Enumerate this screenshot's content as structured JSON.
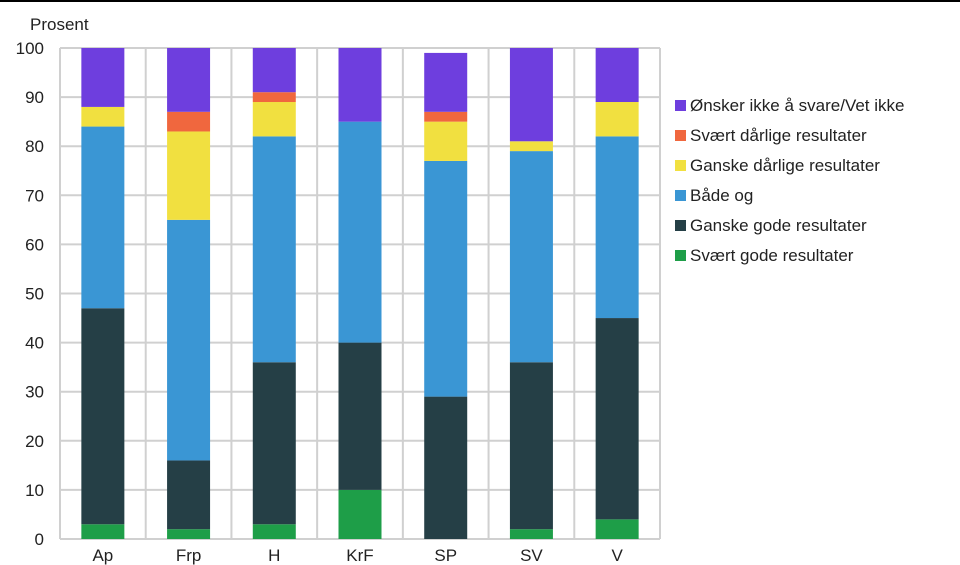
{
  "chart_data": {
    "type": "bar",
    "stacked": true,
    "title": "",
    "ylabel": "Prosent",
    "xlabel": "",
    "ylim": [
      0,
      100
    ],
    "yticks": [
      0,
      10,
      20,
      30,
      40,
      50,
      60,
      70,
      80,
      90,
      100
    ],
    "grid": true,
    "legend_position": "right",
    "categories": [
      "Ap",
      "Frp",
      "H",
      "KrF",
      "SP",
      "SV",
      "V"
    ],
    "series": [
      {
        "name": "Svært gode resultater",
        "color": "#1e9e48",
        "values": [
          3,
          2,
          3,
          10,
          0,
          2,
          4
        ]
      },
      {
        "name": "Ganske gode resultater",
        "color": "#253f46",
        "values": [
          44,
          14,
          33,
          30,
          29,
          34,
          41
        ]
      },
      {
        "name": "Både og",
        "color": "#3a96d4",
        "values": [
          37,
          49,
          46,
          45,
          48,
          43,
          37
        ]
      },
      {
        "name": "Ganske dårlige resultater",
        "color": "#f1e040",
        "values": [
          4,
          18,
          7,
          0,
          8,
          2,
          7
        ]
      },
      {
        "name": "Svært dårlige resultater",
        "color": "#f0673e",
        "values": [
          0,
          4,
          2,
          0,
          2,
          0,
          0
        ]
      },
      {
        "name": "Ønsker ikke å svare/Vet ikke",
        "color": "#6e3ede",
        "values": [
          12,
          13,
          9,
          15,
          12,
          19,
          11
        ]
      }
    ]
  }
}
